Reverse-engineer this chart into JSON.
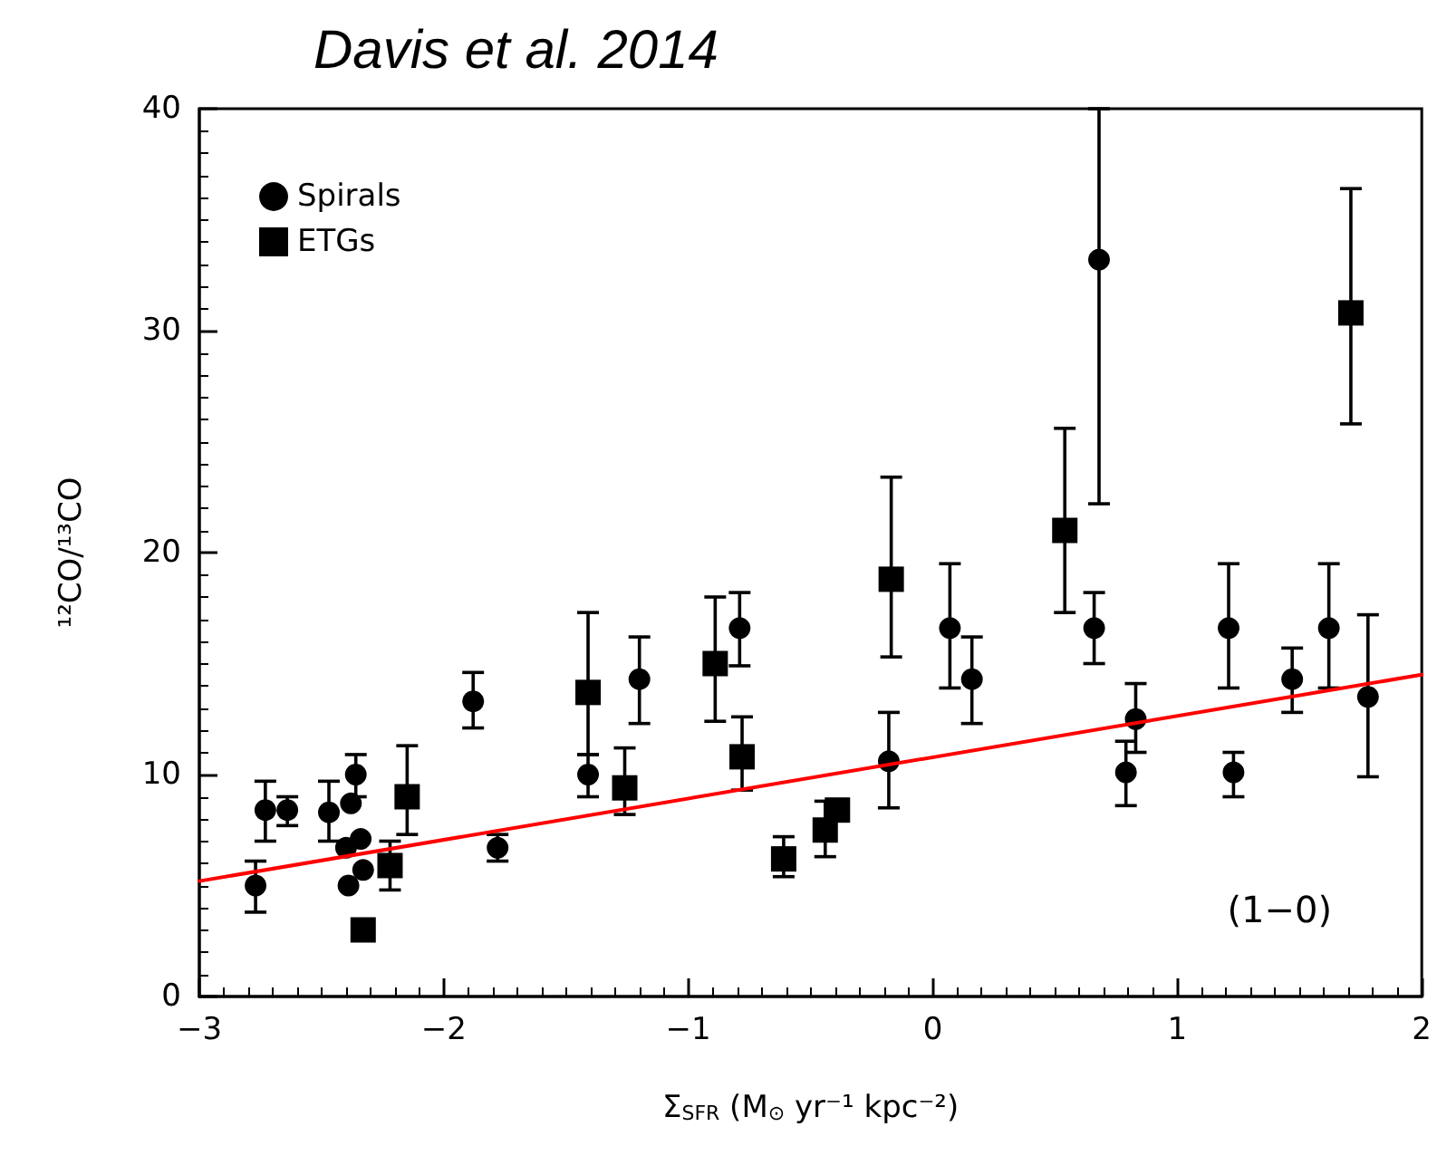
{
  "chart_data": {
    "type": "scatter",
    "title": "Davis et al. 2014",
    "xlabel": "Σ$_{SFR}$ (M$_{⊙}$ yr⁻¹ kpc⁻²)",
    "ylabel": "¹²CO/¹³CO",
    "annotations": [
      "(1−0)"
    ],
    "xlim": [
      -3,
      2
    ],
    "xticks": [
      {
        "value": -3,
        "label": "−3"
      },
      {
        "value": -2,
        "label": "−2"
      },
      {
        "value": -1,
        "label": "−1"
      },
      0,
      1,
      2
    ],
    "ylim": [
      0,
      40
    ],
    "yticks": [
      0,
      10,
      20,
      30,
      40
    ],
    "grid": false,
    "legend": "top left",
    "series": [
      {
        "name": "Spirals",
        "marker": "circle",
        "color": "#000000",
        "x": [
          -2.77,
          -2.73,
          -2.64,
          -2.47,
          -2.36,
          -2.38,
          -2.34,
          -2.4,
          -2.39,
          -2.33,
          -1.88,
          -1.78,
          -1.41,
          -1.2,
          -0.79,
          -0.18,
          0.07,
          0.16,
          0.68,
          0.66,
          0.83,
          0.79,
          1.21,
          1.23,
          1.47,
          1.62,
          1.78
        ],
        "values": [
          5.0,
          8.4,
          8.4,
          8.3,
          10.0,
          8.7,
          7.1,
          6.7,
          5.0,
          5.7,
          13.3,
          6.7,
          10.0,
          14.3,
          16.6,
          10.6,
          16.6,
          14.3,
          33.2,
          16.6,
          12.5,
          10.1,
          16.6,
          10.1,
          14.3,
          16.6,
          13.5
        ],
        "errors": [
          [
            3.8,
            6.1
          ],
          [
            7.0,
            9.7
          ],
          [
            7.7,
            9.0
          ],
          [
            7.0,
            9.7
          ],
          [
            9.0,
            10.9
          ],
          null,
          null,
          null,
          null,
          null,
          [
            12.1,
            14.6
          ],
          [
            6.1,
            7.3
          ],
          [
            9.0,
            10.9
          ],
          [
            12.3,
            16.2
          ],
          [
            14.9,
            18.2
          ],
          [
            8.5,
            12.8
          ],
          [
            13.9,
            19.5
          ],
          [
            12.3,
            16.2
          ],
          [
            22.2,
            40
          ],
          [
            15.0,
            18.2
          ],
          [
            11.0,
            14.1
          ],
          [
            8.6,
            11.5
          ],
          [
            13.9,
            19.5
          ],
          [
            9.0,
            11.0
          ],
          [
            12.8,
            15.7
          ],
          [
            13.9,
            19.5
          ],
          [
            9.9,
            17.2
          ]
        ]
      },
      {
        "name": "ETGs",
        "marker": "square",
        "color": "#000000",
        "x": [
          -2.33,
          -2.22,
          -2.15,
          -1.41,
          -1.26,
          -0.89,
          -0.78,
          -0.61,
          -0.44,
          -0.39,
          -0.17,
          0.54,
          1.71
        ],
        "values": [
          3.0,
          5.9,
          9.0,
          13.7,
          9.4,
          15.0,
          10.8,
          6.2,
          7.5,
          8.4,
          18.8,
          21.0,
          30.8
        ],
        "errors": [
          null,
          [
            4.8,
            7.0
          ],
          [
            7.3,
            11.3
          ],
          [
            10.9,
            17.3
          ],
          [
            8.2,
            11.2
          ],
          [
            12.4,
            18.0
          ],
          [
            9.3,
            12.6
          ],
          [
            5.4,
            7.2
          ],
          [
            6.3,
            8.8
          ],
          null,
          [
            15.3,
            23.4
          ],
          [
            17.3,
            25.6
          ],
          [
            25.8,
            36.4
          ]
        ]
      },
      {
        "type": "line",
        "marker": "none",
        "line_style": "solid",
        "color": "#ff0000",
        "x": [
          -3,
          2
        ],
        "values": [
          5.2,
          14.5
        ]
      }
    ]
  }
}
